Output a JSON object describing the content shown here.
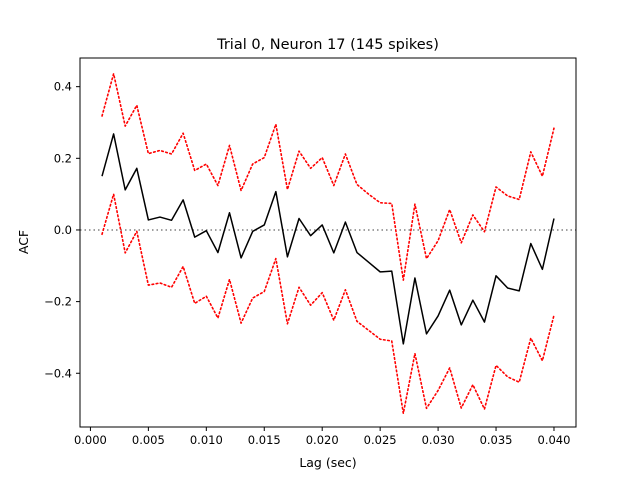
{
  "chart_data": {
    "type": "line",
    "title": "Trial 0, Neuron 17 (145 spikes)",
    "xlabel": "Lag (sec)",
    "ylabel": "ACF",
    "xlim": [
      -0.0009,
      0.0419
    ],
    "ylim": [
      -0.55,
      0.48
    ],
    "xticks": [
      0.0,
      0.005,
      0.01,
      0.015,
      0.02,
      0.025,
      0.03,
      0.035,
      0.04
    ],
    "xtick_labels": [
      "0.000",
      "0.005",
      "0.010",
      "0.015",
      "0.020",
      "0.025",
      "0.030",
      "0.035",
      "0.040"
    ],
    "yticks": [
      -0.4,
      -0.2,
      0.0,
      0.2,
      0.4
    ],
    "ytick_labels": [
      "−0.4",
      "−0.2",
      "0.0",
      "0.2",
      "0.4"
    ],
    "grid": false,
    "reference_line": {
      "y": 0.0,
      "style": "dotted",
      "color": "#808080"
    },
    "x": [
      0.001,
      0.002,
      0.003,
      0.004,
      0.005,
      0.006,
      0.007,
      0.008,
      0.009,
      0.01,
      0.011,
      0.012,
      0.013,
      0.014,
      0.015,
      0.016,
      0.017,
      0.018,
      0.019,
      0.02,
      0.021,
      0.022,
      0.023,
      0.024,
      0.025,
      0.026,
      0.027,
      0.028,
      0.029,
      0.03,
      0.031,
      0.032,
      0.033,
      0.034,
      0.035,
      0.036,
      0.037,
      0.038,
      0.039,
      0.04
    ],
    "series": [
      {
        "color": "#000000",
        "style": "solid",
        "values": [
          0.15,
          0.268,
          0.112,
          0.172,
          0.028,
          0.036,
          0.027,
          0.084,
          -0.02,
          -0.002,
          -0.063,
          0.048,
          -0.078,
          -0.004,
          0.014,
          0.107,
          -0.075,
          0.032,
          -0.016,
          0.014,
          -0.064,
          0.022,
          -0.063,
          -0.09,
          -0.117,
          -0.115,
          -0.318,
          -0.134,
          -0.29,
          -0.24,
          -0.168,
          -0.265,
          -0.196,
          -0.257,
          -0.128,
          -0.162,
          -0.17,
          -0.038,
          -0.11,
          0.032
        ]
      },
      {
        "color": "#ff0000",
        "style": "dotted",
        "values": [
          0.318,
          0.436,
          0.29,
          0.348,
          0.213,
          0.222,
          0.212,
          0.27,
          0.166,
          0.184,
          0.124,
          0.236,
          0.11,
          0.184,
          0.202,
          0.295,
          0.113,
          0.22,
          0.172,
          0.202,
          0.124,
          0.212,
          0.127,
          0.1,
          0.076,
          0.074,
          -0.14,
          0.072,
          -0.08,
          -0.03,
          0.057,
          -0.036,
          0.042,
          -0.005,
          0.12,
          0.095,
          0.085,
          0.218,
          0.15,
          0.284
        ]
      },
      {
        "color": "#ff0000",
        "style": "dotted",
        "values": [
          -0.012,
          0.1,
          -0.064,
          -0.004,
          -0.154,
          -0.148,
          -0.16,
          -0.102,
          -0.205,
          -0.185,
          -0.246,
          -0.138,
          -0.26,
          -0.19,
          -0.172,
          -0.08,
          -0.262,
          -0.16,
          -0.21,
          -0.175,
          -0.252,
          -0.167,
          -0.255,
          -0.28,
          -0.305,
          -0.31,
          -0.512,
          -0.345,
          -0.498,
          -0.448,
          -0.385,
          -0.497,
          -0.432,
          -0.5,
          -0.378,
          -0.41,
          -0.425,
          -0.302,
          -0.365,
          -0.238
        ]
      }
    ]
  }
}
